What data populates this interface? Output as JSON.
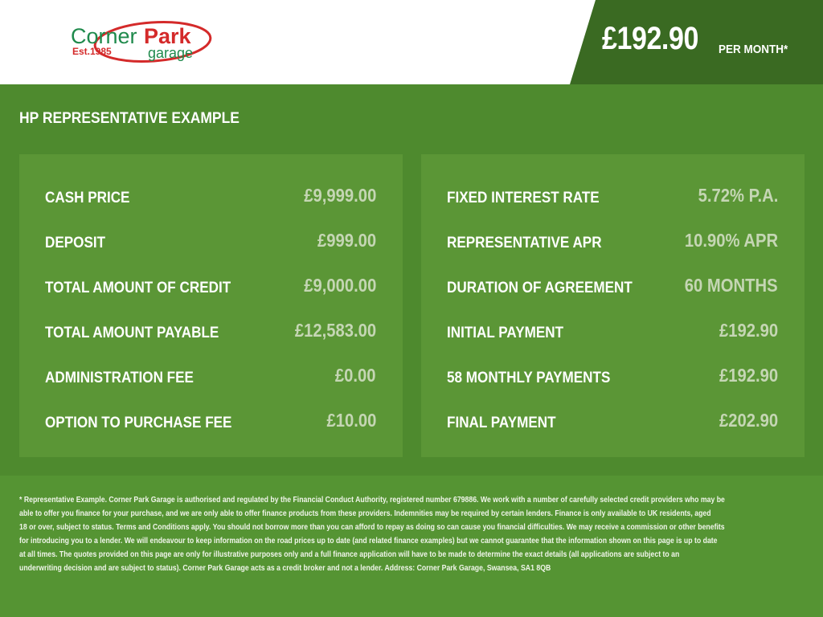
{
  "logo": {
    "name_part1": "Corner",
    "name_part2": "Park",
    "tagline": "garage",
    "est": "Est.1985"
  },
  "header": {
    "price": "£192.90",
    "per_month": "PER MONTH*"
  },
  "title": "HP REPRESENTATIVE EXAMPLE",
  "left": [
    {
      "label": "CASH PRICE",
      "value": "£9,999.00"
    },
    {
      "label": "DEPOSIT",
      "value": "£999.00"
    },
    {
      "label": "TOTAL AMOUNT OF CREDIT",
      "value": "£9,000.00"
    },
    {
      "label": "TOTAL AMOUNT PAYABLE",
      "value": "£12,583.00"
    },
    {
      "label": "ADMINISTRATION FEE",
      "value": "£0.00"
    },
    {
      "label": "OPTION TO PURCHASE FEE",
      "value": "£10.00"
    }
  ],
  "right": [
    {
      "label": "FIXED INTEREST RATE",
      "value": "5.72% P.A."
    },
    {
      "label": "REPRESENTATIVE APR",
      "value": "10.90% APR"
    },
    {
      "label": "DURATION OF AGREEMENT",
      "value": "60 MONTHS"
    },
    {
      "label": "INITIAL PAYMENT",
      "value": "£192.90"
    },
    {
      "label": "58 MONTHLY PAYMENTS",
      "value": "£192.90"
    },
    {
      "label": "FINAL PAYMENT",
      "value": "£202.90"
    }
  ],
  "disclaimer": [
    "* Representative Example. Corner Park Garage is authorised and regulated by the Financial Conduct Authority, registered number 679886. We work with a number of carefully selected credit providers who may be",
    "able to offer you finance for your purchase, and we are only able to offer finance products from these providers. Indemnities may be required by certain lenders. Finance is only available to UK residents, aged",
    "18 or over, subject to status. Terms and Conditions apply. You should not borrow more than you can afford to repay as doing so can cause you financial difficulties. We may receive a commission or other benefits",
    "for introducing you to a lender. We will endeavour to keep information on the road prices up to date (and related finance examples) but we cannot guarantee that the information shown on this page is up to date",
    "at all times. The quotes provided on this page are only for illustrative purposes only and a full finance application will have to be made to determine the exact details (all applications are subject to an",
    "underwriting decision and are subject to status). Corner Park Garage acts as a credit broker and not a lender. Address: Corner Park Garage, Swansea, SA1 8QB"
  ]
}
